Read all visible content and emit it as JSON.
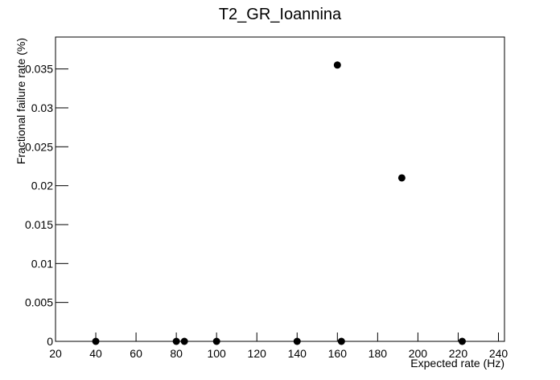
{
  "chart_data": {
    "type": "scatter",
    "title": "T2_GR_Ioannina",
    "x_label": "Expected rate (Hz)",
    "y_label": "Fractional failure rate (%)",
    "x": [
      40,
      80,
      84,
      100,
      140,
      160,
      162,
      192,
      222
    ],
    "values": [
      0,
      0,
      0,
      0,
      0,
      0.0355,
      0,
      0.021,
      0
    ],
    "color": "#000000",
    "xlim": [
      20,
      243
    ],
    "ylim": [
      0,
      0.0391
    ],
    "xticks": [
      20,
      40,
      60,
      80,
      100,
      120,
      140,
      160,
      180,
      200,
      220,
      240
    ],
    "yticks": [
      0,
      0.005,
      0.01,
      0.015,
      0.02,
      0.025,
      0.03,
      0.035
    ]
  }
}
